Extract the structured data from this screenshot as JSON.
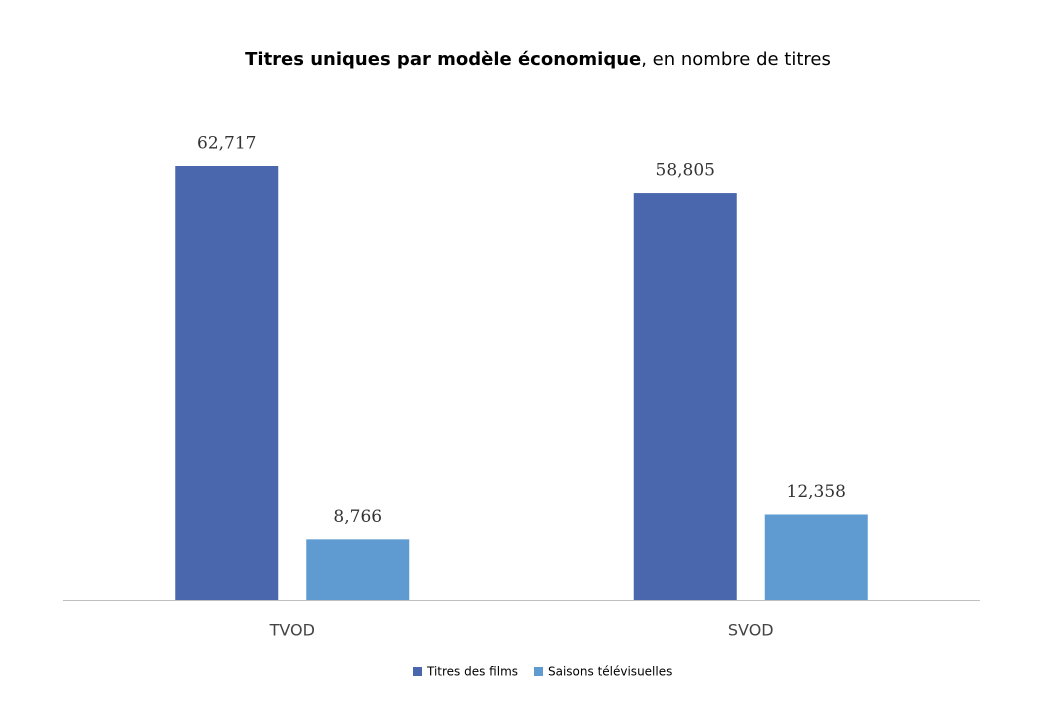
{
  "chart_data": {
    "type": "bar",
    "title": [
      "Titres uniques par modèle économique",
      ", en nombre de titres"
    ],
    "categories": [
      "TVOD",
      "SVOD"
    ],
    "series": [
      {
        "name": "Titres des films",
        "color": "#4a67ae",
        "values": [
          62717,
          58805
        ],
        "value_labels": [
          "62,717",
          "58,805"
        ]
      },
      {
        "name": "Saisons télévisuelles",
        "color": "#5f9bd1",
        "values": [
          8766,
          12358
        ],
        "value_labels": [
          "8,766",
          "12,358"
        ]
      }
    ],
    "legend": "bottom"
  }
}
